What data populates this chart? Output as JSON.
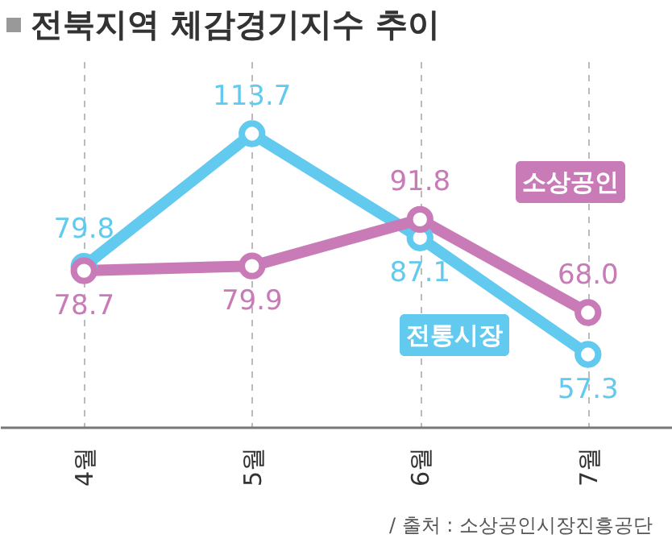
{
  "chart_data": {
    "type": "line",
    "title": "전북지역 체감경기지수 추이",
    "categories": [
      "4월",
      "5월",
      "6월",
      "7월"
    ],
    "series": [
      {
        "name": "전통시장",
        "color": "#62c9ef",
        "values": [
          79.8,
          113.7,
          87.1,
          57.3
        ],
        "value_labels": [
          "79.8",
          "113.7",
          "87.1",
          "57.3"
        ]
      },
      {
        "name": "소상공인",
        "color": "#c97bb8",
        "values": [
          78.7,
          79.9,
          91.8,
          68.0
        ],
        "value_labels": [
          "78.7",
          "79.9",
          "91.8",
          "68.0"
        ]
      }
    ],
    "marker": "circle",
    "grid": "x",
    "legend": false,
    "line_style": "solid",
    "annotations": [
      "/ 출처 : 소상공인시장진흥공단"
    ]
  }
}
